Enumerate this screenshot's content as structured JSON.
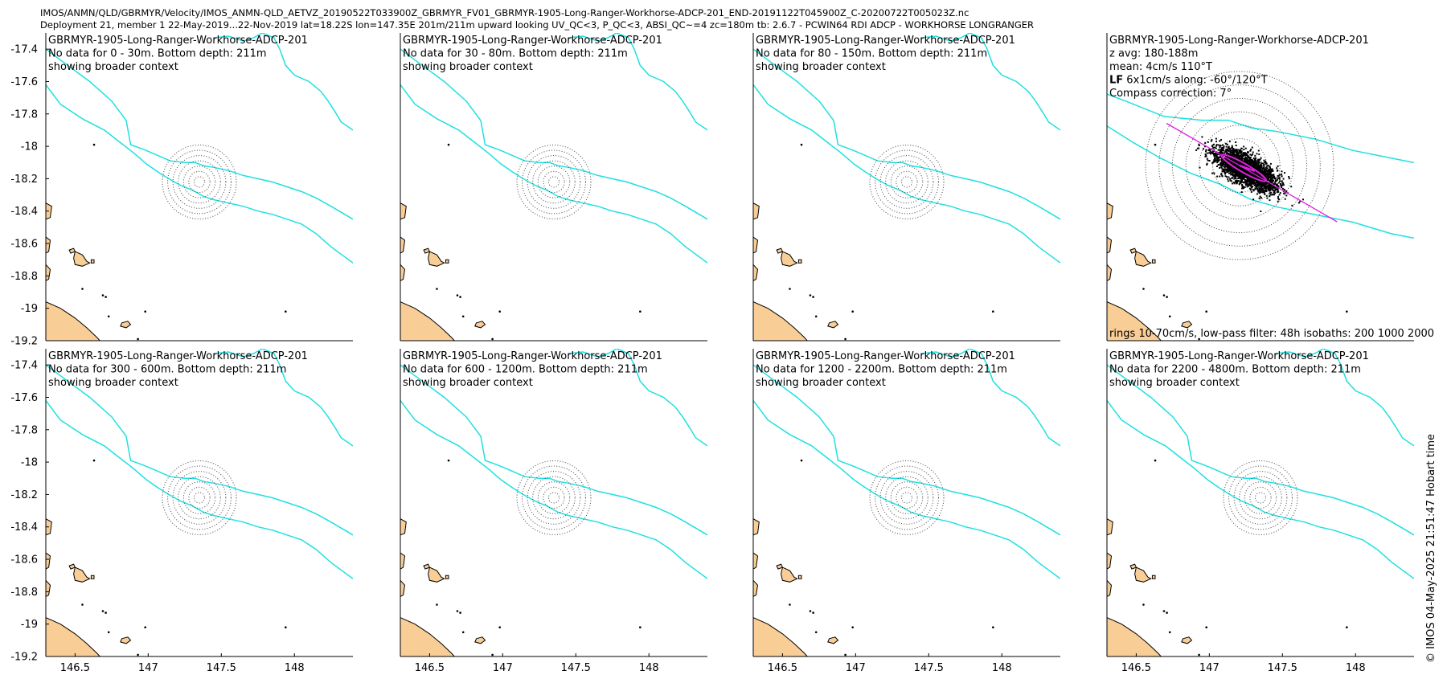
{
  "header": {
    "line1": "IMOS/ANMN/QLD/GBRMYR/Velocity/IMOS_ANMN-QLD_AETVZ_20190522T033900Z_GBRMYR_FV01_GBRMYR-1905-Long-Ranger-Workhorse-ADCP-201_END-20191122T045900Z_C-20200722T005023Z.nc",
    "line2": "Deployment 21, member 1 22-May-2019...22-Nov-2019 lat=18.22S lon=147.35E 201m/211m upward looking UV_QC<3, P_QC<3, ABSI_QC~=4 zc=180m tb: 2.6.7 - PCWIN64 RDI ADCP - WORKHORSE LONGRANGER"
  },
  "credit": "© IMOS 04-May-2025 21:51:47 Hobart time",
  "colors": {
    "isobath": "#1fe0e0",
    "land": "#f9cd96",
    "scatter": "#000000",
    "ellipse": "#e020e0",
    "rings": "#444444"
  },
  "chart_data": {
    "type": "scatter",
    "xlim": [
      146.3,
      148.4
    ],
    "ylim": [
      -19.2,
      -17.3
    ],
    "x_ticks": [
      "146.5",
      "147",
      "147.5",
      "148"
    ],
    "x_tick_values": [
      146.5,
      147,
      147.5,
      148
    ],
    "y_ticks": [
      "-17.4",
      "-17.6",
      "-17.8",
      "-18",
      "-18.2",
      "-18.4",
      "-18.6",
      "-18.8",
      "-19",
      "-19.2"
    ],
    "y_tick_values": [
      -17.4,
      -17.6,
      -17.8,
      -18,
      -18.2,
      -18.4,
      -18.6,
      -18.8,
      -19,
      -19.2
    ],
    "mooring": {
      "lon": 147.35,
      "lat": -18.22
    },
    "panels": [
      {
        "title": "GBRMYR-1905-Long-Ranger-Workhorse-ADCP-201",
        "line2": "No data for 0 - 30m. Bottom depth: 211m",
        "line3": "showing broader context"
      },
      {
        "title": "GBRMYR-1905-Long-Ranger-Workhorse-ADCP-201",
        "line2": "No data for 30 - 80m. Bottom depth: 211m",
        "line3": "showing broader context"
      },
      {
        "title": "GBRMYR-1905-Long-Ranger-Workhorse-ADCP-201",
        "line2": "No data for 80 - 150m. Bottom depth: 211m",
        "line3": "showing broader context"
      },
      {
        "title": "GBRMYR-1905-Long-Ranger-Workhorse-ADCP-201",
        "line2": "z avg: 180-188m",
        "line3": "mean: 4cm/s 110°T",
        "lf_prefix": "LF",
        "lf_text": " 6x1cm/s along: -60°/120°T",
        "line5": "Compass correction: 7°",
        "footer": "rings 10-70cm/s, low-pass filter: 48h isobaths: 200 1000 2000"
      },
      {
        "title": "GBRMYR-1905-Long-Ranger-Workhorse-ADCP-201",
        "line2": "No data for 300 - 600m. Bottom depth: 211m",
        "line3": "showing broader context"
      },
      {
        "title": "GBRMYR-1905-Long-Ranger-Workhorse-ADCP-201",
        "line2": "No data for 600 - 1200m. Bottom depth: 211m",
        "line3": "showing broader context"
      },
      {
        "title": "GBRMYR-1905-Long-Ranger-Workhorse-ADCP-201",
        "line2": "No data for 1200 - 2200m. Bottom depth: 211m",
        "line3": "showing broader context"
      },
      {
        "title": "GBRMYR-1905-Long-Ranger-Workhorse-ADCP-201",
        "line2": "No data for 2200 - 4800m. Bottom depth: 211m",
        "line3": "showing broader context"
      }
    ],
    "rings_cm_s": [
      10,
      20,
      30,
      40,
      50,
      60,
      70
    ],
    "isobaths_m": [
      200,
      1000,
      2000
    ],
    "lowpass_filter_h": 48,
    "current_stats": {
      "mean_speed_cm_s": 4,
      "mean_dir_degT": 110,
      "ellipse_major_cm_s": 6,
      "ellipse_minor_cm_s": 1,
      "axis_dir_degT": 120
    },
    "isobath_lines": [
      [
        [
          146.3,
          -17.62
        ],
        [
          146.4,
          -17.74
        ],
        [
          146.55,
          -17.83
        ],
        [
          146.7,
          -17.9
        ],
        [
          146.8,
          -17.97
        ],
        [
          146.9,
          -18.04
        ],
        [
          146.99,
          -18.11
        ],
        [
          147.07,
          -18.16
        ],
        [
          147.14,
          -18.2
        ],
        [
          147.22,
          -18.24
        ],
        [
          147.3,
          -18.27
        ],
        [
          147.38,
          -18.31
        ],
        [
          147.45,
          -18.33
        ],
        [
          147.55,
          -18.35
        ],
        [
          147.65,
          -18.37
        ],
        [
          147.75,
          -18.4
        ],
        [
          147.85,
          -18.42
        ],
        [
          147.95,
          -18.45
        ],
        [
          148.05,
          -18.48
        ],
        [
          148.15,
          -18.54
        ],
        [
          148.25,
          -18.62
        ],
        [
          148.4,
          -18.72
        ]
      ],
      [
        [
          146.3,
          -17.4
        ],
        [
          146.45,
          -17.5
        ],
        [
          146.6,
          -17.6
        ],
        [
          146.75,
          -17.72
        ],
        [
          146.85,
          -17.84
        ],
        [
          146.88,
          -17.99
        ],
        [
          146.97,
          -18.02
        ],
        [
          147.05,
          -18.05
        ],
        [
          147.15,
          -18.09
        ],
        [
          147.25,
          -18.1
        ],
        [
          147.32,
          -18.1
        ],
        [
          147.38,
          -18.12
        ],
        [
          147.45,
          -18.13
        ],
        [
          147.55,
          -18.15
        ],
        [
          147.65,
          -18.18
        ],
        [
          147.75,
          -18.2
        ],
        [
          147.85,
          -18.22
        ],
        [
          147.95,
          -18.25
        ],
        [
          148.05,
          -18.28
        ],
        [
          148.15,
          -18.32
        ],
        [
          148.25,
          -18.37
        ],
        [
          148.4,
          -18.45
        ]
      ],
      [
        [
          147.45,
          -17.33
        ],
        [
          147.55,
          -17.32
        ],
        [
          147.65,
          -17.35
        ],
        [
          147.72,
          -17.33
        ],
        [
          147.78,
          -17.3
        ],
        [
          147.86,
          -17.33
        ],
        [
          147.9,
          -17.4
        ],
        [
          147.94,
          -17.5
        ],
        [
          148.0,
          -17.56
        ],
        [
          148.1,
          -17.6
        ],
        [
          148.18,
          -17.66
        ],
        [
          148.23,
          -17.72
        ],
        [
          148.28,
          -17.79
        ],
        [
          148.32,
          -17.85
        ],
        [
          148.4,
          -17.9
        ]
      ]
    ],
    "land_polygons": [
      [
        [
          146.3,
          -18.96
        ],
        [
          146.4,
          -19.0
        ],
        [
          146.5,
          -19.06
        ],
        [
          146.58,
          -19.12
        ],
        [
          146.65,
          -19.18
        ],
        [
          146.68,
          -19.21
        ],
        [
          146.3,
          -19.21
        ]
      ],
      [
        [
          146.3,
          -18.35
        ],
        [
          146.34,
          -18.37
        ],
        [
          146.33,
          -18.44
        ],
        [
          146.3,
          -18.45
        ]
      ],
      [
        [
          146.3,
          -18.56
        ],
        [
          146.33,
          -18.58
        ],
        [
          146.32,
          -18.65
        ],
        [
          146.3,
          -18.66
        ]
      ],
      [
        [
          146.3,
          -18.73
        ],
        [
          146.33,
          -18.76
        ],
        [
          146.32,
          -18.82
        ],
        [
          146.3,
          -18.83
        ]
      ],
      [
        [
          146.5,
          -18.65
        ],
        [
          146.55,
          -18.67
        ],
        [
          146.58,
          -18.71
        ],
        [
          146.6,
          -18.72
        ],
        [
          146.55,
          -18.74
        ],
        [
          146.5,
          -18.73
        ],
        [
          146.49,
          -18.69
        ]
      ],
      [
        [
          146.46,
          -18.64
        ],
        [
          146.49,
          -18.63
        ],
        [
          146.5,
          -18.65
        ],
        [
          146.47,
          -18.66
        ]
      ],
      [
        [
          146.61,
          -18.7
        ],
        [
          146.63,
          -18.7
        ],
        [
          146.63,
          -18.72
        ],
        [
          146.61,
          -18.72
        ]
      ],
      [
        [
          146.82,
          -19.09
        ],
        [
          146.86,
          -19.08
        ],
        [
          146.88,
          -19.1
        ],
        [
          146.85,
          -19.12
        ],
        [
          146.81,
          -19.11
        ]
      ]
    ],
    "islets": [
      [
        146.63,
        -17.99
      ],
      [
        146.55,
        -18.88
      ],
      [
        146.69,
        -18.92
      ],
      [
        146.71,
        -18.93
      ],
      [
        146.73,
        -19.05
      ],
      [
        146.98,
        -19.02
      ],
      [
        147.94,
        -19.02
      ],
      [
        146.93,
        -19.19
      ]
    ],
    "scatter_seed": 12
  }
}
